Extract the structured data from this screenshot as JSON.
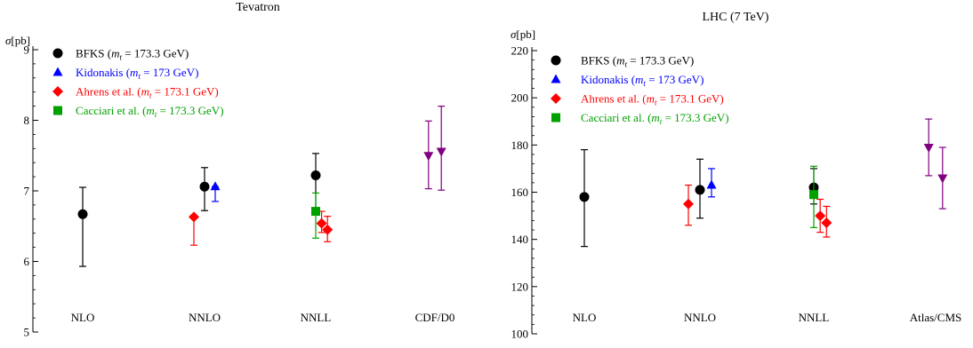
{
  "chart_data": [
    {
      "type": "scatter",
      "title": "Tevatron",
      "ylabel_sym": "σ",
      "ylabel_unit": "[pb]",
      "ylim": [
        5,
        9
      ],
      "yticks": [
        "5",
        "6",
        "7",
        "8",
        "9"
      ],
      "ytick_values": [
        5,
        6,
        7,
        8,
        9
      ],
      "categories": [
        "NLO",
        "NNLO",
        "NNLL",
        "CDF/D0"
      ],
      "grid": false,
      "legend_position": "top-left",
      "series": [
        {
          "name": "BFKS",
          "label_param": "173.3 GeV",
          "marker": "circle",
          "color": "#000000",
          "points": [
            {
              "category": "NLO",
              "offset": 0,
              "y": 6.67,
              "ylow": 5.93,
              "yhigh": 7.05
            },
            {
              "category": "NNLO",
              "offset": 0,
              "y": 7.06,
              "ylow": 6.72,
              "yhigh": 7.33
            },
            {
              "category": "NNLL",
              "offset": 0,
              "y": 7.22,
              "ylow": 6.75,
              "yhigh": 7.53
            }
          ]
        },
        {
          "name": "Kidonakis",
          "label_param": "173 GeV",
          "marker": "triangle-up",
          "color": "#0000ff",
          "points": [
            {
              "category": "NNLO",
              "offset": 1,
              "y": 7.06,
              "ylow": 6.85,
              "yhigh": 7.06
            }
          ]
        },
        {
          "name": "Ahrens et al.",
          "label_param": "173.1 GeV",
          "marker": "diamond",
          "color": "#ff0000",
          "points": [
            {
              "category": "NNLO",
              "offset": -1,
              "y": 6.63,
              "ylow": 6.23,
              "yhigh": 6.63
            },
            {
              "category": "NNLL",
              "offset": 0.55,
              "y": 6.54,
              "ylow": 6.41,
              "yhigh": 6.71
            },
            {
              "category": "NNLL",
              "offset": 1.1,
              "y": 6.45,
              "ylow": 6.28,
              "yhigh": 6.64
            }
          ]
        },
        {
          "name": "Cacciari et al.",
          "label_param": "173.3 GeV",
          "marker": "square",
          "color": "#00a000",
          "points": [
            {
              "category": "NNLL",
              "offset": 0,
              "y": 6.71,
              "ylow": 6.33,
              "yhigh": 6.97
            }
          ]
        },
        {
          "name": "CDF/D0",
          "marker": "triangle-down",
          "color": "#800080",
          "legend": false,
          "points": [
            {
              "category": "CDF/D0",
              "offset": -0.6,
              "y": 7.5,
              "ylow": 7.03,
              "yhigh": 7.99
            },
            {
              "category": "CDF/D0",
              "offset": 0.6,
              "y": 7.56,
              "ylow": 7.01,
              "yhigh": 8.2
            }
          ]
        }
      ]
    },
    {
      "type": "scatter",
      "title": "LHC (7 TeV)",
      "ylabel_sym": "σ",
      "ylabel_unit": "[pb]",
      "ylim": [
        100,
        220
      ],
      "yticks": [
        "100",
        "120",
        "140",
        "160",
        "180",
        "200",
        "220"
      ],
      "ytick_values": [
        100,
        120,
        140,
        160,
        180,
        200,
        220
      ],
      "categories": [
        "NLO",
        "NNLO",
        "NNLL",
        "Atlas/CMS"
      ],
      "grid": false,
      "legend_position": "top-left",
      "series": [
        {
          "name": "BFKS",
          "label_param": "173.3 GeV",
          "marker": "circle",
          "color": "#000000",
          "points": [
            {
              "category": "NLO",
              "offset": 0,
              "y": 158,
              "ylow": 137,
              "yhigh": 178
            },
            {
              "category": "NNLO",
              "offset": 0,
              "y": 161,
              "ylow": 149,
              "yhigh": 174
            },
            {
              "category": "NNLL",
              "offset": 0,
              "y": 162,
              "ylow": 155,
              "yhigh": 170
            }
          ]
        },
        {
          "name": "Kidonakis",
          "label_param": "173 GeV",
          "marker": "triangle-up",
          "color": "#0000ff",
          "points": [
            {
              "category": "NNLO",
              "offset": 1,
              "y": 163,
              "ylow": 158,
              "yhigh": 170
            }
          ]
        },
        {
          "name": "Ahrens et al.",
          "label_param": "173.1 GeV",
          "marker": "diamond",
          "color": "#ff0000",
          "points": [
            {
              "category": "NNLO",
              "offset": -1,
              "y": 155,
              "ylow": 146,
              "yhigh": 163
            },
            {
              "category": "NNLL",
              "offset": 0.55,
              "y": 150,
              "ylow": 143,
              "yhigh": 157
            },
            {
              "category": "NNLL",
              "offset": 1.1,
              "y": 147,
              "ylow": 141,
              "yhigh": 154
            }
          ]
        },
        {
          "name": "Cacciari et al.",
          "label_param": "173.3 GeV",
          "marker": "square",
          "color": "#00a000",
          "points": [
            {
              "category": "NNLL",
              "offset": 0,
              "y": 159,
              "ylow": 145,
              "yhigh": 171
            }
          ]
        },
        {
          "name": "Atlas/CMS",
          "marker": "triangle-down",
          "color": "#800080",
          "legend": false,
          "points": [
            {
              "category": "Atlas/CMS",
              "offset": -0.6,
              "y": 179,
              "ylow": 167,
              "yhigh": 191
            },
            {
              "category": "Atlas/CMS",
              "offset": 0.6,
              "y": 166,
              "ylow": 153,
              "yhigh": 179
            }
          ]
        }
      ]
    }
  ]
}
